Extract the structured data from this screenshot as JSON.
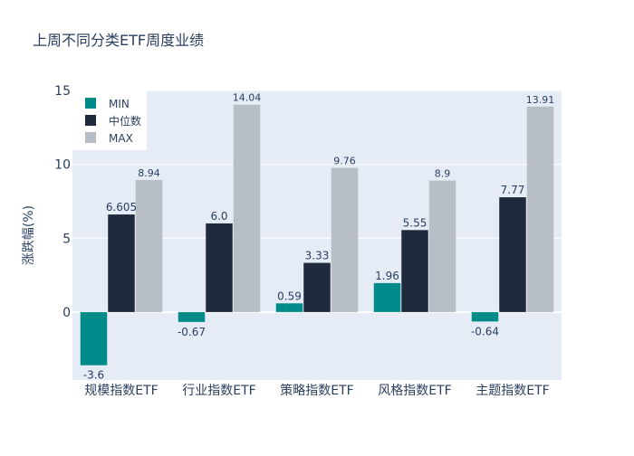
{
  "chart_data": {
    "type": "bar",
    "title": "上周不同分类ETF周度业绩",
    "xlabel": "",
    "ylabel": "涨跌幅(%)",
    "ylim": [
      -4.6,
      15
    ],
    "yticks": [
      0,
      5,
      10,
      15
    ],
    "categories": [
      "规模指数ETF",
      "行业指数ETF",
      "策略指数ETF",
      "风格指数ETF",
      "主题指数ETF"
    ],
    "series": [
      {
        "name": "MIN",
        "color": "#008b8b",
        "values": [
          -3.6,
          -0.67,
          0.59,
          1.96,
          -0.64
        ],
        "labels": [
          "-3.6",
          "-0.67",
          "0.59",
          "1.96",
          "-0.64"
        ]
      },
      {
        "name": "中位数",
        "color": "#1f2a3c",
        "values": [
          6.605,
          6.0,
          3.33,
          5.55,
          7.77
        ],
        "labels": [
          "6.605",
          "6.0",
          "3.33",
          "5.55",
          "7.77"
        ]
      },
      {
        "name": "MAX",
        "color": "#b8bec6",
        "values": [
          8.94,
          14.04,
          9.76,
          8.9,
          13.91
        ],
        "labels": [
          "8.94",
          "14.04",
          "9.76",
          "8.9",
          "13.91"
        ]
      }
    ],
    "legend": {
      "position": "top-left"
    },
    "grid": true,
    "colors": {
      "plot_bg": "#e5ecf6",
      "grid": "#ffffff",
      "text": "#2a3f5f"
    }
  }
}
